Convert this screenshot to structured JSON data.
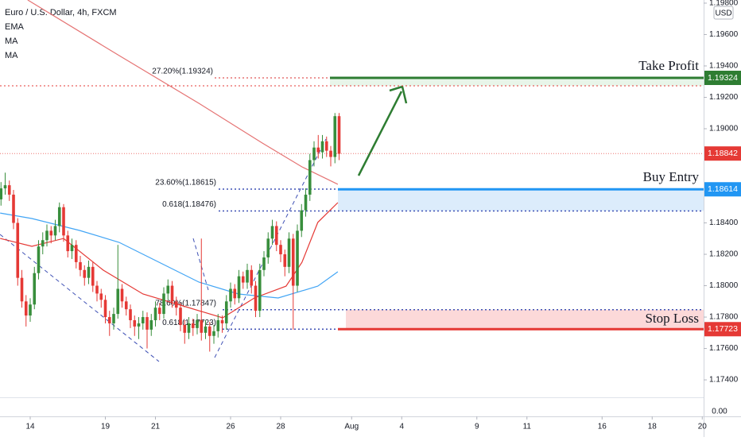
{
  "chart_data": {
    "type": "candlestick",
    "title": "Euro / U.S. Dollar, 4h, FXCM",
    "legend": [
      "EMA",
      "MA",
      "MA"
    ],
    "currency": "USD",
    "corner_label": "0.00",
    "up_color": "#388e3c",
    "down_color": "#e53935",
    "xlim": [
      -7.24,
      161.33
    ],
    "ylim": [
      1.17289,
      1.1982
    ],
    "xticks": [
      {
        "value": 0,
        "label": "14"
      },
      {
        "value": 18,
        "label": "19"
      },
      {
        "value": 30,
        "label": "21"
      },
      {
        "value": 48,
        "label": "26"
      },
      {
        "value": 60,
        "label": "28"
      },
      {
        "value": 77,
        "label": "Aug"
      },
      {
        "value": 89,
        "label": "4"
      },
      {
        "value": 107,
        "label": "9"
      },
      {
        "value": 119,
        "label": "11"
      },
      {
        "value": 137,
        "label": "16"
      },
      {
        "value": 149,
        "label": "18"
      },
      {
        "value": 161,
        "label": "20"
      }
    ],
    "yticks": [
      {
        "value": 1.198,
        "label": "1.19800"
      },
      {
        "value": 1.196,
        "label": "1.19600"
      },
      {
        "value": 1.194,
        "label": "1.19400"
      },
      {
        "value": 1.192,
        "label": "1.19200"
      },
      {
        "value": 1.19,
        "label": "1.19000"
      },
      {
        "value": 1.184,
        "label": "1.18400"
      },
      {
        "value": 1.182,
        "label": "1.18200"
      },
      {
        "value": 1.18,
        "label": "1.18000"
      },
      {
        "value": 1.178,
        "label": "1.17800"
      },
      {
        "value": 1.176,
        "label": "1.17600"
      },
      {
        "value": 1.174,
        "label": "1.17400"
      }
    ],
    "x": [
      -7,
      -6,
      -5,
      -4,
      -3,
      -2,
      -1,
      0,
      1,
      2,
      3,
      4,
      5,
      6,
      7,
      8,
      9,
      10,
      11,
      12,
      13,
      14,
      15,
      16,
      17,
      18,
      19,
      20,
      21,
      22,
      23,
      24,
      25,
      26,
      27,
      28,
      29,
      30,
      31,
      32,
      33,
      34,
      35,
      36,
      37,
      38,
      39,
      40,
      41,
      42,
      43,
      44,
      45,
      46,
      47,
      48,
      49,
      50,
      51,
      52,
      53,
      54,
      55,
      56,
      57,
      58,
      59,
      60,
      61,
      62,
      63,
      64,
      65,
      66,
      67,
      68,
      69,
      70,
      71,
      72,
      73,
      74
    ],
    "open": [
      1.1855,
      1.1862,
      1.1864,
      1.1858,
      1.184,
      1.1805,
      1.179,
      1.1781,
      1.1788,
      1.1808,
      1.1825,
      1.1829,
      1.1835,
      1.1832,
      1.1838,
      1.185,
      1.1832,
      1.1822,
      1.1826,
      1.1815,
      1.181,
      1.1805,
      1.1812,
      1.18,
      1.1795,
      1.1791,
      1.178,
      1.1776,
      1.1782,
      1.1798,
      1.179,
      1.1785,
      1.1778,
      1.1774,
      1.1776,
      1.178,
      1.1772,
      1.1778,
      1.1786,
      1.1782,
      1.1795,
      1.18,
      1.179,
      1.1786,
      1.1775,
      1.177,
      1.1776,
      1.1773,
      1.1778,
      1.177,
      1.1774,
      1.1768,
      1.1771,
      1.1778,
      1.1776,
      1.179,
      1.1798,
      1.1792,
      1.1806,
      1.1802,
      1.181,
      1.18,
      1.1784,
      1.181,
      1.1818,
      1.183,
      1.1838,
      1.1826,
      1.182,
      1.1812,
      1.183,
      1.18,
      1.1835,
      1.1848,
      1.1858,
      1.188,
      1.1888,
      1.1885,
      1.1892,
      1.1886,
      1.1882,
      1.1908
    ],
    "high": [
      1.1866,
      1.1872,
      1.1867,
      1.1861,
      1.1843,
      1.181,
      1.1794,
      1.1792,
      1.1812,
      1.1829,
      1.1834,
      1.1839,
      1.1838,
      1.1842,
      1.1853,
      1.1852,
      1.1835,
      1.183,
      1.1829,
      1.1819,
      1.1813,
      1.1816,
      1.1815,
      1.1803,
      1.1798,
      1.1794,
      1.1784,
      1.1786,
      1.1826,
      1.1801,
      1.1793,
      1.1788,
      1.1781,
      1.178,
      1.1784,
      1.1783,
      1.1782,
      1.179,
      1.1789,
      1.1799,
      1.1804,
      1.1803,
      1.1793,
      1.1789,
      1.1778,
      1.178,
      1.1779,
      1.1782,
      1.183,
      1.1778,
      1.1777,
      1.1775,
      1.1782,
      1.1781,
      1.1794,
      1.1802,
      1.1801,
      1.181,
      1.1809,
      1.1814,
      1.1813,
      1.1803,
      1.1814,
      1.1822,
      1.1834,
      1.1842,
      1.1841,
      1.1829,
      1.1823,
      1.1834,
      1.1833,
      1.1839,
      1.1852,
      1.1862,
      1.1884,
      1.1892,
      1.1896,
      1.1896,
      1.1895,
      1.1889,
      1.191,
      1.191
    ],
    "low": [
      1.1851,
      1.1858,
      1.1854,
      1.1836,
      1.18,
      1.1786,
      1.1774,
      1.1777,
      1.1785,
      1.1804,
      1.182,
      1.1825,
      1.1827,
      1.1829,
      1.1834,
      1.1828,
      1.1818,
      1.1817,
      1.1811,
      1.1806,
      1.18,
      1.1801,
      1.1796,
      1.179,
      1.1786,
      1.1776,
      1.1768,
      1.1772,
      1.1779,
      1.1786,
      1.1781,
      1.1773,
      1.1768,
      1.1766,
      1.1772,
      1.176,
      1.1768,
      1.1774,
      1.1778,
      1.1779,
      1.1791,
      1.1786,
      1.1781,
      1.1771,
      1.1763,
      1.1766,
      1.1768,
      1.1769,
      1.1765,
      1.1766,
      1.1758,
      1.1763,
      1.1767,
      1.177,
      1.1772,
      1.1786,
      1.1788,
      1.1789,
      1.1798,
      1.1798,
      1.1795,
      1.178,
      1.178,
      1.1806,
      1.1814,
      1.1826,
      1.1822,
      1.1815,
      1.1806,
      1.1808,
      1.1772,
      1.1796,
      1.1831,
      1.1844,
      1.1854,
      1.1876,
      1.1881,
      1.1881,
      1.1882,
      1.1876,
      1.1878,
      1.188
    ],
    "close": [
      1.1862,
      1.1864,
      1.1858,
      1.184,
      1.1805,
      1.179,
      1.1781,
      1.1788,
      1.1808,
      1.1825,
      1.1829,
      1.1835,
      1.1832,
      1.1838,
      1.185,
      1.1832,
      1.1822,
      1.1826,
      1.1815,
      1.181,
      1.1805,
      1.1812,
      1.18,
      1.1795,
      1.1791,
      1.178,
      1.1776,
      1.1782,
      1.1798,
      1.179,
      1.1785,
      1.1778,
      1.1774,
      1.1776,
      1.178,
      1.1772,
      1.1778,
      1.1786,
      1.1782,
      1.1795,
      1.18,
      1.179,
      1.1786,
      1.1775,
      1.177,
      1.1776,
      1.1773,
      1.1778,
      1.177,
      1.1774,
      1.1768,
      1.1771,
      1.1778,
      1.1776,
      1.179,
      1.1798,
      1.1792,
      1.1806,
      1.1802,
      1.181,
      1.18,
      1.1784,
      1.181,
      1.1818,
      1.183,
      1.1838,
      1.1826,
      1.182,
      1.1812,
      1.183,
      1.18,
      1.1835,
      1.1848,
      1.1858,
      1.188,
      1.1888,
      1.1885,
      1.1892,
      1.1886,
      1.1882,
      1.1908,
      1.1884
    ],
    "series": [
      {
        "name": "EMA",
        "color": "#e57373",
        "x": [
          -0.6,
          21.3,
          40.4,
          55.6,
          65.1,
          73.7
        ],
        "values": [
          1.1982,
          1.19466,
          1.19162,
          1.18909,
          1.18757,
          1.18646
        ]
      },
      {
        "name": "MA",
        "color": "#e53935",
        "x": [
          -7.2,
          0.4,
          8,
          17.5,
          27,
          36.6,
          46.1,
          53.7,
          61.3,
          65.1,
          68.9,
          73.7
        ],
        "values": [
          1.18301,
          1.18251,
          1.18301,
          1.18099,
          1.17947,
          1.17871,
          1.17795,
          1.17922,
          1.17997,
          1.18149,
          1.18403,
          1.18529
        ]
      },
      {
        "name": "MA",
        "color": "#42a5f5",
        "x": [
          -7.2,
          0.4,
          11.8,
          21.3,
          30.9,
          40.4,
          49.9,
          59.4,
          68.9,
          73.7
        ],
        "values": [
          1.18463,
          1.18428,
          1.18352,
          1.18276,
          1.18149,
          1.18023,
          1.17947,
          1.17922,
          1.17997,
          1.18089
        ]
      }
    ],
    "last_price": {
      "value": 1.18842,
      "color": "#e53935"
    },
    "zones": [
      {
        "name": "Take Profit",
        "value": 1.19324,
        "edge": 1.19273,
        "color": "#2e7d32",
        "fill": "#e8f5e9"
      },
      {
        "name": "Buy Entry",
        "value": 1.18614,
        "edge": 1.18476,
        "color": "#2196f3",
        "fill": "#dcecfb"
      },
      {
        "name": "Stop Loss",
        "value": 1.17723,
        "edge": 1.17847,
        "color": "#e53935",
        "fill": "#fcd9d9"
      }
    ],
    "fib_levels": [
      {
        "text": "27.20%(1.19324)",
        "value": 1.19324,
        "color": "#e57373"
      },
      {
        "text": "23.60%(1.18615)",
        "value": 1.18615,
        "color": "#3f51b5"
      },
      {
        "text": "0.618(1.18476)",
        "value": 1.18476,
        "color": "#3f51b5"
      },
      {
        "text": "78.60%(1.17847)",
        "value": 1.17847,
        "color": "#3f51b5"
      },
      {
        "text": "0.618(1.17723)",
        "value": 1.17723,
        "color": "#3f51b5"
      }
    ]
  }
}
